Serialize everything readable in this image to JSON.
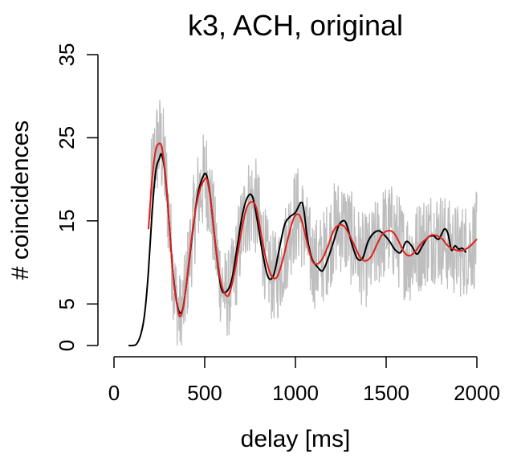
{
  "colors": {
    "raw": "#bebebe",
    "fit": "#000000",
    "model": "#e0201c",
    "axis": "#000000",
    "background": "#ffffff"
  },
  "chart_data": {
    "type": "line",
    "title": "k3, ACH, original",
    "xlabel": "delay [ms]",
    "ylabel": "# coincidences",
    "xlim": [
      0,
      2000
    ],
    "ylim": [
      0,
      35
    ],
    "xticks": [
      0,
      500,
      1000,
      1500,
      2000
    ],
    "xtick_labels": [
      "0",
      "500",
      "1000",
      "1500",
      "2000"
    ],
    "yticks": [
      0,
      5,
      15,
      25,
      35
    ],
    "ytick_labels": [
      "0",
      "5",
      "15",
      "25",
      "35"
    ],
    "grid": false,
    "legend": "none",
    "series": [
      {
        "style": "raw-histogram",
        "color": "#bebebe",
        "x_range": [
          200,
          2000
        ],
        "noise_amplitude": 4.5,
        "tracks": "model"
      },
      {
        "style": "smooth-line",
        "color": "#000000",
        "x": [
          80,
          100,
          125,
          150,
          170,
          190,
          210,
          230,
          250,
          262,
          280,
          300,
          320,
          340,
          360,
          380,
          400,
          430,
          460,
          490,
          510,
          530,
          560,
          590,
          620,
          650,
          680,
          710,
          740,
          765,
          790,
          820,
          850,
          880,
          910,
          940,
          970,
          1000,
          1030,
          1045,
          1065,
          1090,
          1120,
          1150,
          1180,
          1210,
          1240,
          1270,
          1290,
          1310,
          1340,
          1370,
          1400,
          1430,
          1460,
          1490,
          1520,
          1550,
          1580,
          1610,
          1640,
          1670,
          1700,
          1730,
          1760,
          1790,
          1820,
          1840,
          1860,
          1880,
          1900,
          1920,
          1940
        ],
        "y": [
          0,
          0,
          0.2,
          1.5,
          4,
          9,
          16,
          21,
          22.5,
          23,
          21,
          16,
          10,
          6,
          4,
          4.5,
          7.5,
          13,
          18,
          20.3,
          20.5,
          18,
          12,
          7,
          6.5,
          8,
          12,
          16,
          18,
          17.8,
          15,
          11,
          8.2,
          8.5,
          11.5,
          14.5,
          15.5,
          16,
          17.2,
          16.5,
          13,
          10.5,
          9.5,
          9,
          10.5,
          12.5,
          14.5,
          15,
          14,
          12.3,
          10.5,
          10.5,
          12.5,
          13.5,
          13.8,
          13.3,
          12.5,
          11.5,
          11.2,
          12.5,
          12,
          11,
          12,
          13,
          13.2,
          12.8,
          14,
          13.5,
          11.5,
          12,
          11.6,
          11.7,
          11.2
        ]
      },
      {
        "style": "smooth-line",
        "color": "#e0201c",
        "x": [
          190,
          210,
          230,
          255,
          270,
          290,
          310,
          330,
          350,
          365,
          385,
          410,
          440,
          470,
          500,
          515,
          535,
          560,
          590,
          620,
          640,
          670,
          700,
          730,
          760,
          785,
          810,
          840,
          870,
          900,
          930,
          960,
          990,
          1015,
          1035,
          1060,
          1090,
          1120,
          1150,
          1180,
          1210,
          1240,
          1270,
          1300,
          1330,
          1360,
          1390,
          1420,
          1450,
          1480,
          1510,
          1540,
          1570,
          1600,
          1630,
          1660,
          1690,
          1720,
          1750,
          1780,
          1810,
          1840,
          1870,
          1900,
          1930,
          1960,
          2000
        ],
        "y": [
          14,
          20,
          23.5,
          24.3,
          23,
          19,
          13,
          7.5,
          4.5,
          3.5,
          5,
          9.5,
          15,
          18.5,
          20,
          19.8,
          17,
          12,
          7.5,
          6,
          6.5,
          9.5,
          13.5,
          16.5,
          17.3,
          16.5,
          13.5,
          10.2,
          8.3,
          8.3,
          10.3,
          13,
          15.3,
          15.8,
          15,
          12.8,
          10.3,
          9.8,
          10.5,
          12,
          13.8,
          14.5,
          14.3,
          13.2,
          11.8,
          10.5,
          10.2,
          10.8,
          12.2,
          13.4,
          13.8,
          13.6,
          12.5,
          11.2,
          10.8,
          11.3,
          12.2,
          12.8,
          13.3,
          13.2,
          12.8,
          12,
          11.6,
          11.4,
          11.5,
          11.9,
          12.8
        ]
      }
    ]
  }
}
